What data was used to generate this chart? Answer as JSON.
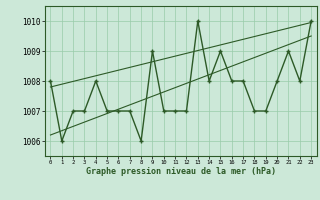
{
  "x": [
    0,
    1,
    2,
    3,
    4,
    5,
    6,
    7,
    8,
    9,
    10,
    11,
    12,
    13,
    14,
    15,
    16,
    17,
    18,
    19,
    20,
    21,
    22,
    23
  ],
  "y": [
    1008,
    1006,
    1007,
    1007,
    1008,
    1007,
    1007,
    1007,
    1006,
    1009,
    1007,
    1007,
    1007,
    1010,
    1008,
    1009,
    1008,
    1008,
    1007,
    1007,
    1008,
    1009,
    1008,
    1010
  ],
  "trend_x": [
    0,
    23
  ],
  "trend_y": [
    1006.2,
    1009.5
  ],
  "trend2_x": [
    0,
    23
  ],
  "trend2_y": [
    1007.8,
    1009.95
  ],
  "line_color": "#2d5a27",
  "bg_color": "#cce8d8",
  "grid_color": "#99ccaa",
  "xlabel": "Graphe pression niveau de la mer (hPa)",
  "ylim": [
    1005.5,
    1010.5
  ],
  "xlim": [
    -0.5,
    23.5
  ],
  "yticks": [
    1006,
    1007,
    1008,
    1009,
    1010
  ],
  "xticks": [
    0,
    1,
    2,
    3,
    4,
    5,
    6,
    7,
    8,
    9,
    10,
    11,
    12,
    13,
    14,
    15,
    16,
    17,
    18,
    19,
    20,
    21,
    22,
    23
  ]
}
